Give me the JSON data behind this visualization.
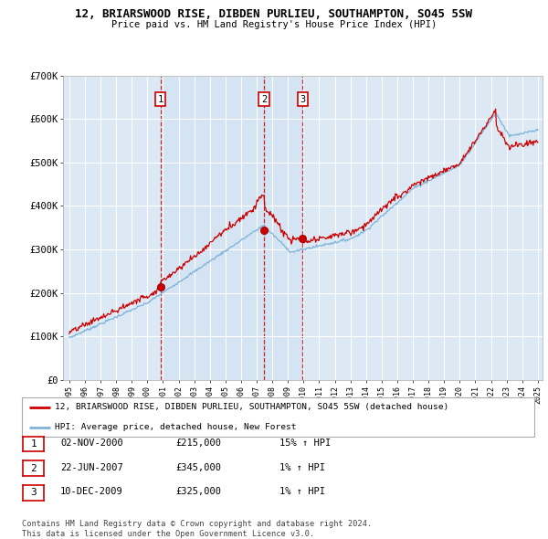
{
  "title1": "12, BRIARSWOOD RISE, DIBDEN PURLIEU, SOUTHAMPTON, SO45 5SW",
  "title2": "Price paid vs. HM Land Registry's House Price Index (HPI)",
  "x_start_year": 1995,
  "x_end_year": 2025,
  "y_min": 0,
  "y_max": 700000,
  "y_ticks": [
    0,
    100000,
    200000,
    300000,
    400000,
    500000,
    600000,
    700000
  ],
  "y_tick_labels": [
    "£0",
    "£100K",
    "£200K",
    "£300K",
    "£400K",
    "£500K",
    "£600K",
    "£700K"
  ],
  "background_color": "#dce9f5",
  "grid_color": "#ffffff",
  "red_line_color": "#cc0000",
  "blue_line_color": "#7fb3d9",
  "dashed_line_color": "#cc0000",
  "sale_points": [
    {
      "year": 2000.84,
      "price": 215000,
      "label": "1"
    },
    {
      "year": 2007.47,
      "price": 345000,
      "label": "2"
    },
    {
      "year": 2009.94,
      "price": 325000,
      "label": "3"
    }
  ],
  "legend_red_label": "12, BRIARSWOOD RISE, DIBDEN PURLIEU, SOUTHAMPTON, SO45 5SW (detached house)",
  "legend_blue_label": "HPI: Average price, detached house, New Forest",
  "table_rows": [
    {
      "num": "1",
      "date": "02-NOV-2000",
      "price": "£215,000",
      "pct": "15% ↑ HPI"
    },
    {
      "num": "2",
      "date": "22-JUN-2007",
      "price": "£345,000",
      "pct": "1% ↑ HPI"
    },
    {
      "num": "3",
      "date": "10-DEC-2009",
      "price": "£325,000",
      "pct": "1% ↑ HPI"
    }
  ],
  "footer1": "Contains HM Land Registry data © Crown copyright and database right 2024.",
  "footer2": "This data is licensed under the Open Government Licence v3.0."
}
